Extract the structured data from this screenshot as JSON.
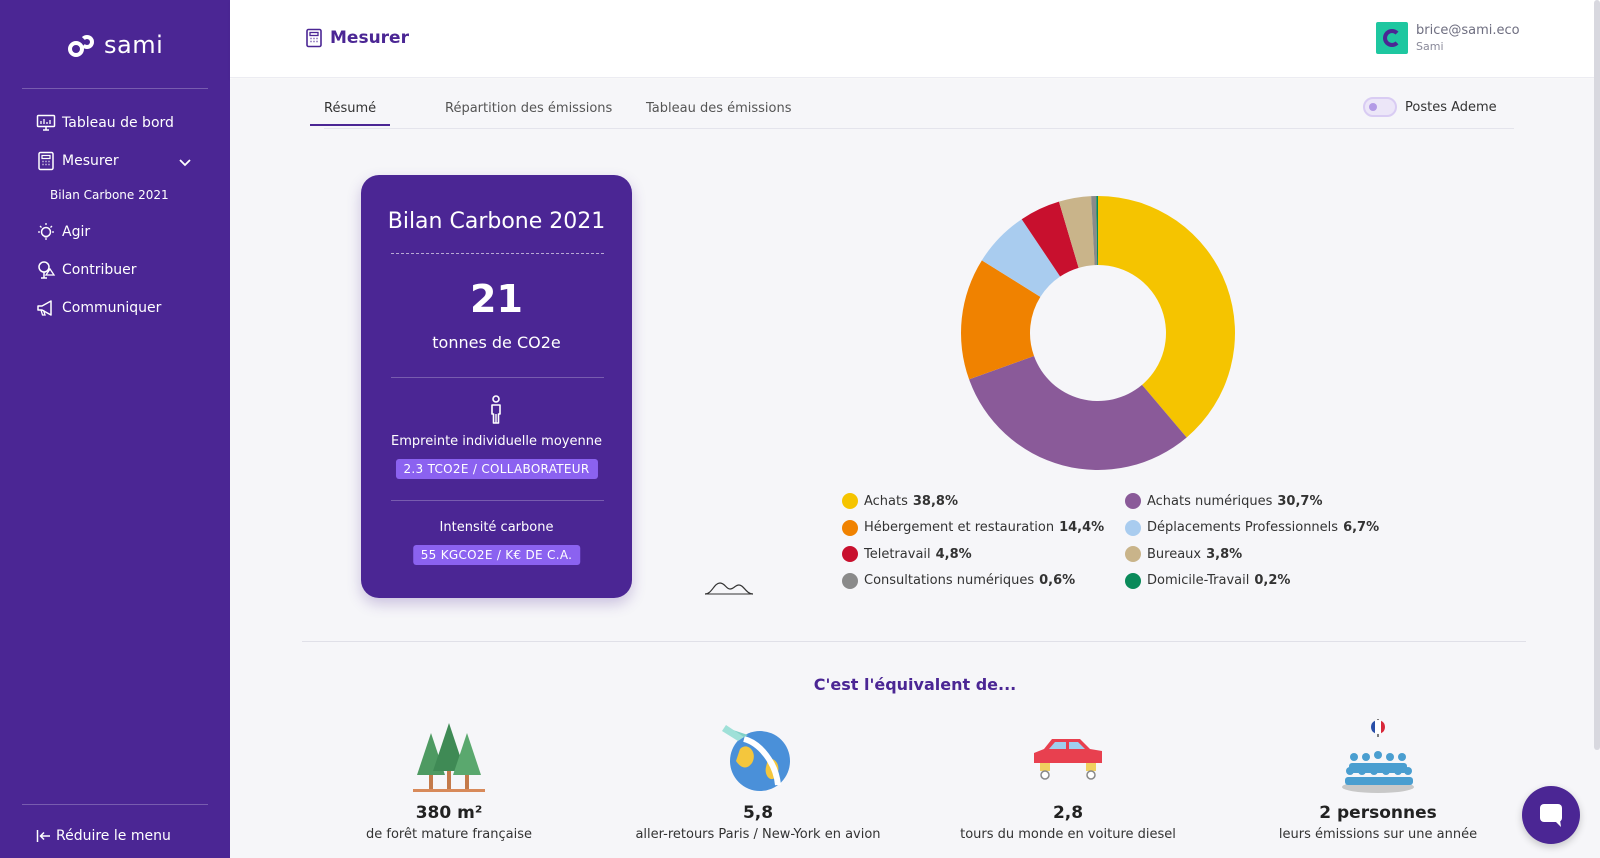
{
  "sidebar": {
    "logo_text": "sami",
    "items": [
      {
        "label": "Tableau de bord",
        "icon": "dashboard-icon"
      },
      {
        "label": "Mesurer",
        "icon": "calculator-icon"
      },
      {
        "label": "Bilan Carbone 2021"
      },
      {
        "label": "Agir",
        "icon": "lightbulb-icon"
      },
      {
        "label": "Contribuer",
        "icon": "tree-icon"
      },
      {
        "label": "Communiquer",
        "icon": "megaphone-icon"
      }
    ],
    "collapse_label": "Réduire le menu"
  },
  "header": {
    "title": "Mesurer",
    "user_email": "brice@sami.eco",
    "user_org": "Sami"
  },
  "tabs": [
    {
      "label": "Résumé",
      "active": true
    },
    {
      "label": "Répartition des émissions",
      "active": false
    },
    {
      "label": "Tableau des émissions",
      "active": false
    }
  ],
  "toggle": {
    "label": "Postes Ademe",
    "on": false
  },
  "card": {
    "title": "Bilan Carbone 2021",
    "total": "21",
    "unit": "tonnes de CO2e",
    "individual_label": "Empreinte individuelle moyenne",
    "individual_value": "2.3 TCO2E / COLLABORATEUR",
    "intensity_label": "Intensité carbone",
    "intensity_value": "55 KGCO2E / K€ DE C.A."
  },
  "chart_data": {
    "type": "pie",
    "categories": [
      "Achats",
      "Achats numériques",
      "Hébergement et restauration",
      "Déplacements Professionnels",
      "Teletravail",
      "Bureaux",
      "Consultations numériques",
      "Domicile-Travail"
    ],
    "values": [
      38.8,
      30.7,
      14.4,
      6.7,
      4.8,
      3.8,
      0.6,
      0.2
    ],
    "labels": [
      "38,8%",
      "30,7%",
      "14,4%",
      "6,7%",
      "4,8%",
      "3,8%",
      "0,6%",
      "0,2%"
    ],
    "colors": [
      "#f5c400",
      "#8a5a99",
      "#f08200",
      "#a9ccef",
      "#c8102e",
      "#c9b48a",
      "#8a8a8a",
      "#0a8a5a"
    ],
    "donut": true,
    "legend_position": "bottom"
  },
  "equivalents": {
    "title": "C'est l'équivalent de...",
    "items": [
      {
        "value": "380 m²",
        "label": "de forêt mature française",
        "icon": "forest-icon"
      },
      {
        "value": "5,8",
        "label": "aller-retours Paris / New-York en avion",
        "icon": "plane-globe-icon"
      },
      {
        "value": "2,8",
        "label": "tours du monde en voiture diesel",
        "icon": "car-icon"
      },
      {
        "value": "2 personnes",
        "label": "leurs émissions sur une année",
        "icon": "people-icon"
      }
    ]
  }
}
